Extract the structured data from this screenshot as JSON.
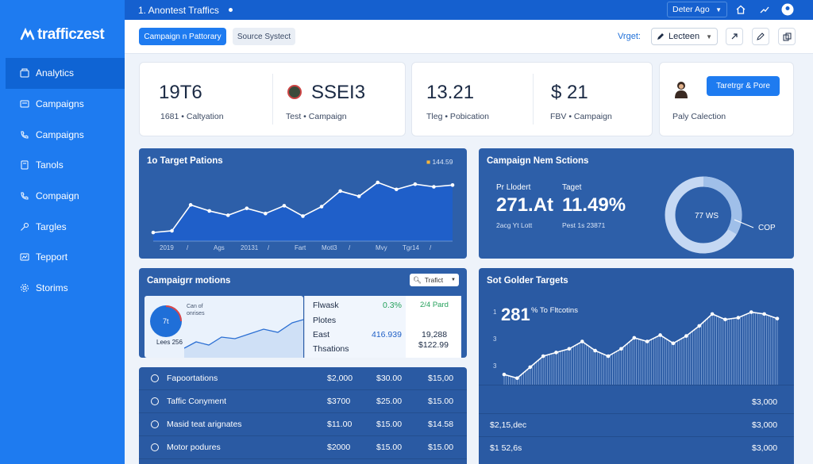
{
  "app": {
    "name": "trafficzest",
    "window_title": "1. Anontest Traffics",
    "date_select": "Deter Ago"
  },
  "sidebar": {
    "items": [
      {
        "label": "Analytics",
        "icon": "folder-icon"
      },
      {
        "label": "Campaigns",
        "icon": "inbox-icon"
      },
      {
        "label": "Campaigns",
        "icon": "phone-icon"
      },
      {
        "label": "Tanols",
        "icon": "document-icon"
      },
      {
        "label": "Compaign",
        "icon": "phone-icon"
      },
      {
        "label": "Targles",
        "icon": "key-icon"
      },
      {
        "label": "Tepport",
        "icon": "image-icon"
      },
      {
        "label": "Storims",
        "icon": "settings-icon"
      }
    ]
  },
  "toolbar": {
    "primary_tab": "Campaign n Pattorary",
    "secondary_tab": "Source Systect",
    "view_label": "Vrget:",
    "view_select": "Lecteen"
  },
  "kpis": [
    {
      "value": "19T6",
      "label": "1681 • Caltyation"
    },
    {
      "value": "SSEI3",
      "label": "Test • Campaign"
    },
    {
      "value": "13.21",
      "label": "Tleg • Pobication"
    },
    {
      "value": "$ 21",
      "label": "FBV • Campaign"
    },
    {
      "value": "",
      "label": "Paly Calection",
      "button": "Taretrgr & Pore"
    }
  ],
  "chart1": {
    "title": "1o Target Pations",
    "legend": "144.59",
    "ticks": [
      "2019",
      "/",
      "Ags",
      "20131",
      "/",
      "Fart",
      "Motl3",
      "/",
      "Mvy",
      "Tgr14",
      "/"
    ]
  },
  "chart_data": [
    {
      "type": "area",
      "title": "1o Target Pations",
      "series": [
        {
          "values": [
            10,
            12,
            42,
            35,
            30,
            38,
            32,
            41,
            29,
            40,
            58,
            52,
            68,
            60,
            66,
            63,
            65
          ]
        }
      ],
      "ylim": [
        0,
        80
      ]
    },
    {
      "type": "pie",
      "values": [
        72,
        28
      ],
      "center_label": "77 WS",
      "side_label": "COP"
    },
    {
      "type": "line",
      "title": "Sot Golder Targets",
      "series": [
        {
          "values": [
            12,
            8,
            20,
            32,
            36,
            40,
            48,
            38,
            32,
            40,
            52,
            48,
            55,
            46,
            54,
            65,
            78,
            72,
            74,
            80,
            78,
            73
          ]
        }
      ],
      "ylim": [
        0,
        90
      ]
    }
  ],
  "campaign_stats": {
    "title": "Campaign Nem Sctions",
    "a_label": "Pr Llodert",
    "a_value": "271.At",
    "a_sub": "2acg Yt Lott",
    "b_label": "Taget",
    "b_value": "11.49%",
    "b_sub": "Pest 1s 23871",
    "donut_center": "77 WS",
    "donut_side": "COP"
  },
  "campaign_motions": {
    "title": "Campaigrr motions",
    "select": "Trafict",
    "pie_label": "7t",
    "pie_caption1": "Can of",
    "pie_caption2": "onrises",
    "pie_bottom": "Lees 256",
    "table": [
      {
        "name": "Flwask",
        "v1": "0.3%",
        "v2": "2/4 Pard"
      },
      {
        "name": "Plotes",
        "v1": "",
        "v2": ""
      },
      {
        "name": "East",
        "v1": "416.939",
        "v2": "19,288"
      },
      {
        "name": "Thsations",
        "v1": "",
        "v2": "$122.99"
      }
    ]
  },
  "golden": {
    "title": "Sot Golder Targets",
    "callout": "281",
    "callout_sub": "% To Fltcotins",
    "yticks": [
      "1",
      "3",
      "3"
    ],
    "price_right1": "$3,000",
    "price_left2": "$2,15,dec",
    "price_right2": "$3,000",
    "price_left3": "$1 52,6s",
    "price_right3": "$3,000"
  },
  "rows": [
    {
      "name": "Fapoortations",
      "a": "$2,000",
      "b": "$30.00",
      "c": "$15,00"
    },
    {
      "name": "Taffic Conyment",
      "a": "$3700",
      "b": "$25.00",
      "c": "$15.00"
    },
    {
      "name": "Masid teat arignates",
      "a": "$11.00",
      "b": "$15.00",
      "c": "$14.58"
    },
    {
      "name": "Motor podures",
      "a": "$2000",
      "b": "$15.00",
      "c": "$15.00"
    }
  ]
}
